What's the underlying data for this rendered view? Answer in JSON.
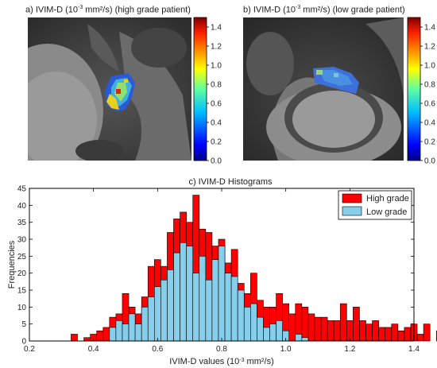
{
  "panel_a": {
    "title_pre": "a) IVIM-D (10",
    "title_exp": "-3",
    "title_post": " mm²/s) (high grade patient)"
  },
  "panel_b": {
    "title_pre": "b) IVIM-D (10",
    "title_exp": "-3",
    "title_post": " mm²/s)  (low grade patient)"
  },
  "colorbar": {
    "ticks": [
      "0.0",
      "0.2",
      "0.4",
      "0.6",
      "0.8",
      "1.0",
      "1.2",
      "1.4"
    ],
    "tick_values": [
      0.0,
      0.2,
      0.4,
      0.6,
      0.8,
      1.0,
      1.2,
      1.4
    ],
    "range": [
      0,
      1.5
    ]
  },
  "histogram": {
    "title": "c) IVIM-D Histograms",
    "xlabel_pre": "IVIM-D values (10",
    "xlabel_exp": "-3",
    "xlabel_post": " mm²/s)",
    "ylabel": "Frequencies"
  },
  "chart_data": {
    "type": "bar",
    "title": "c) IVIM-D Histograms",
    "xlabel": "IVIM-D values (10-3 mm²/s)",
    "ylabel": "Frequencies",
    "xlim": [
      0.2,
      1.4
    ],
    "ylim": [
      0,
      45
    ],
    "xticks": [
      "0.2",
      "0.4",
      "0.6",
      "0.8",
      "1.0",
      "1.2",
      "1.4"
    ],
    "xtick_values": [
      0.2,
      0.4,
      0.6,
      0.8,
      1.0,
      1.2,
      1.4
    ],
    "yticks": [
      "0",
      "5",
      "10",
      "15",
      "20",
      "25",
      "30",
      "35",
      "40",
      "45"
    ],
    "ytick_values": [
      0,
      5,
      10,
      15,
      20,
      25,
      30,
      35,
      40,
      45
    ],
    "legend_position": "top-right",
    "bin_start": 0.33,
    "bin_width": 0.02,
    "series": [
      {
        "name": "High grade",
        "color": "#ff0000",
        "values": [
          2,
          0,
          1,
          2,
          3,
          4,
          7,
          8,
          14,
          10,
          8,
          13,
          22,
          24,
          22,
          32,
          36,
          38,
          35,
          43,
          33,
          32,
          28,
          30,
          23,
          27,
          17,
          14,
          20,
          12,
          10,
          10,
          14,
          11,
          8,
          11,
          10,
          8,
          7,
          7,
          6,
          6,
          11,
          6,
          10,
          6,
          5,
          6,
          4,
          4,
          5,
          3,
          4,
          5,
          2,
          5,
          0,
          3,
          5,
          4,
          4,
          6
        ]
      },
      {
        "name": "Low grade",
        "color": "#87ceeb",
        "values": [
          0,
          0,
          0,
          0,
          0,
          0,
          4,
          6,
          5,
          8,
          5,
          10,
          13,
          16,
          18,
          21,
          26,
          29,
          28,
          20,
          25,
          18,
          24,
          28,
          20,
          19,
          15,
          10,
          11,
          7,
          4,
          5,
          6,
          3,
          0,
          2,
          1,
          0,
          0,
          0,
          0,
          0,
          0,
          0,
          0,
          0,
          0,
          0,
          0,
          0,
          0,
          0,
          0,
          0,
          0,
          0,
          0,
          0,
          0,
          0,
          0,
          0
        ]
      }
    ]
  }
}
